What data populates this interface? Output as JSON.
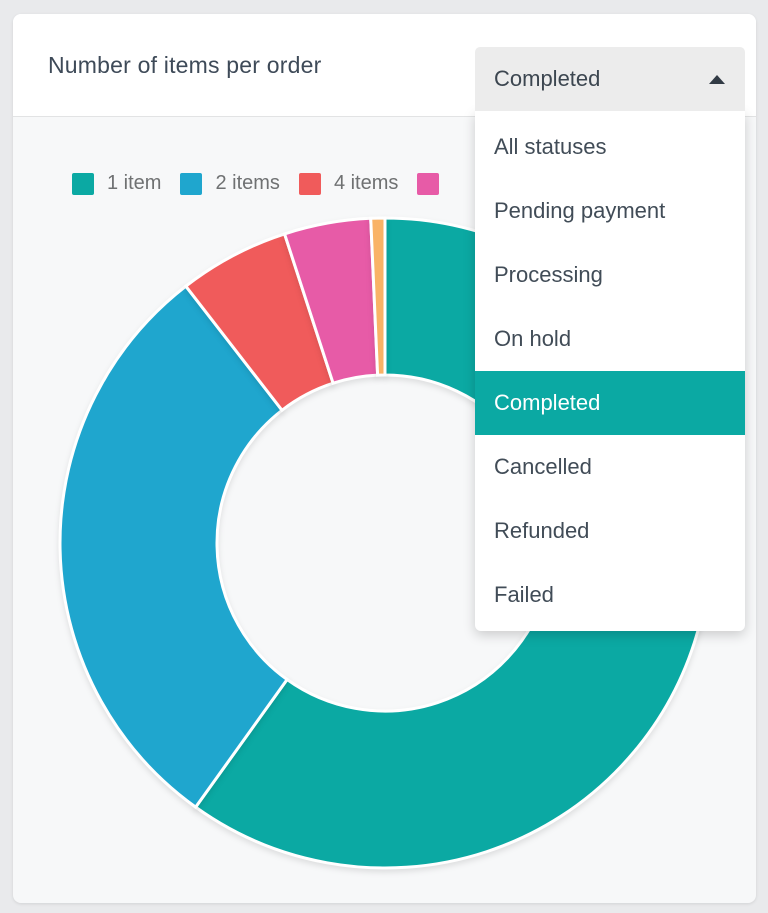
{
  "page": {
    "background": "#e9eaec"
  },
  "card": {
    "title": "Number of items per order"
  },
  "status_filter": {
    "selected": "Completed",
    "selected_index": 4,
    "open": true,
    "options": [
      "All statuses",
      "Pending payment",
      "Processing",
      "On hold",
      "Completed",
      "Cancelled",
      "Refunded",
      "Failed"
    ]
  },
  "legend": {
    "items": [
      {
        "label": "1 item",
        "color": "#0ba9a3"
      },
      {
        "label": "2 items",
        "color": "#1fa6ce"
      },
      {
        "label": "4 items",
        "color": "#f05b5b"
      },
      {
        "label": "",
        "color": "#e75ba7"
      }
    ]
  },
  "chart_data": {
    "type": "pie",
    "subtype": "donut",
    "title": "Number of items per order",
    "legend_position": "top-left",
    "direction": "clockwise",
    "start_angle_deg": 0,
    "donut_inner_ratio": 0.517,
    "segments": [
      {
        "label": "1 item",
        "percent": 59.9,
        "color": "#0ba9a3"
      },
      {
        "label": "2 items",
        "percent": 29.6,
        "color": "#1fa6ce"
      },
      {
        "label": "4 items",
        "percent": 5.5,
        "color": "#f05b5b"
      },
      {
        "label": "",
        "percent": 4.3,
        "color": "#e75ba7"
      },
      {
        "label": "",
        "percent": 0.7,
        "color": "#f9b366"
      }
    ]
  },
  "colors": {
    "accent_teal": "#0ba9a3",
    "card_header_bg": "#ffffff",
    "chart_area_bg": "#f7f8f9",
    "page_bg": "#e9eaec",
    "dropdown_button_bg": "#ececec"
  }
}
